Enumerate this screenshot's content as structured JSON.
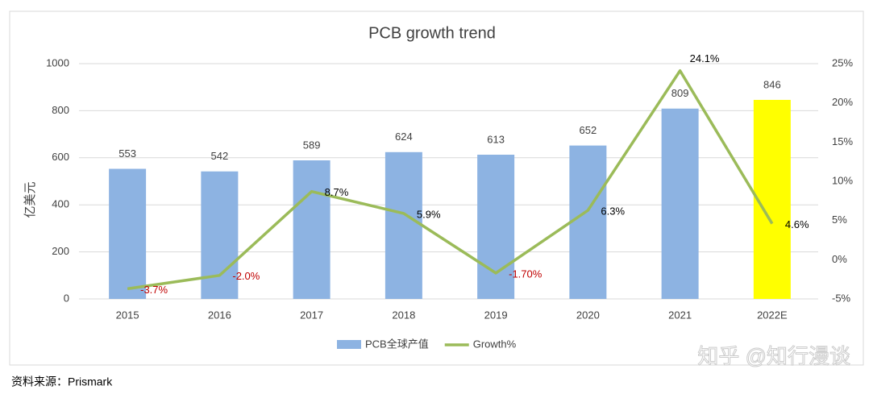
{
  "chart_data": {
    "type": "bar-line",
    "title": "PCB growth trend",
    "y_label": "亿美元",
    "categories": [
      "2015",
      "2016",
      "2017",
      "2018",
      "2019",
      "2020",
      "2021",
      "2022E"
    ],
    "series": [
      {
        "name": "PCB全球产值",
        "type": "bar",
        "color": "#8db3e2",
        "colors": [
          "#8db3e2",
          "#8db3e2",
          "#8db3e2",
          "#8db3e2",
          "#8db3e2",
          "#8db3e2",
          "#8db3e2",
          "#ffff00"
        ],
        "values": [
          553,
          542,
          589,
          624,
          613,
          652,
          809,
          846
        ]
      },
      {
        "name": "Growth%",
        "type": "line",
        "axis": "y2",
        "color": "#9bbb59",
        "values": [
          -3.7,
          -2.0,
          8.7,
          5.9,
          -1.7,
          6.3,
          24.1,
          4.6
        ],
        "value_labels": [
          "-3.7%",
          "-2.0%",
          "8.7%",
          "5.9%",
          "-1.70%",
          "6.3%",
          "24.1%",
          "4.6%"
        ]
      }
    ],
    "ylim": [
      0,
      1000
    ],
    "yticks": [
      0,
      200,
      400,
      600,
      800,
      1000
    ],
    "y2lim": [
      -5,
      25
    ],
    "y2ticks": [
      {
        "value": -5,
        "label": "-5%"
      },
      {
        "value": 0,
        "label": "0%"
      },
      {
        "value": 5,
        "label": "5%"
      },
      {
        "value": 10,
        "label": "10%"
      },
      {
        "value": 15,
        "label": "15%"
      },
      {
        "value": 20,
        "label": "20%"
      },
      {
        "value": 25,
        "label": "25%"
      }
    ],
    "grid": true,
    "legend": "bottom"
  },
  "source": "资料来源：Prismark",
  "watermark": "知乎 @知行漫谈"
}
